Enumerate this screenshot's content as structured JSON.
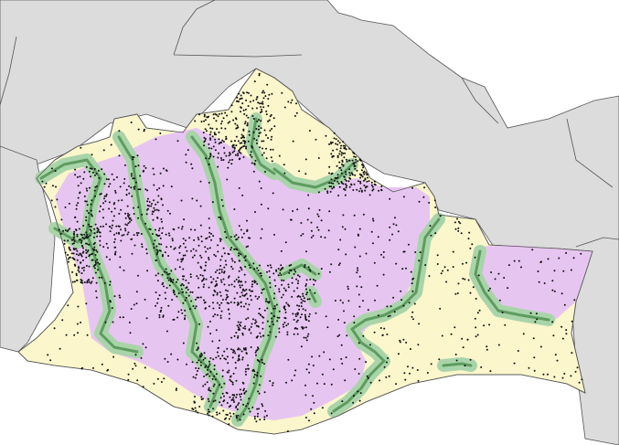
{
  "map": {
    "colors": {
      "sea": "#ffffff",
      "neighbor_land": "#dcdcdc",
      "border": "#555555",
      "lowland": "#fbf6cc",
      "highland": "#e7c5f1",
      "transition_outer": "#a9d4a9",
      "transition_inner": "#5d9c5f",
      "points": "#111111"
    },
    "layers": [
      "neighbor-land",
      "lowland-zone",
      "highland-zone",
      "transition-buffer",
      "point-observations"
    ]
  }
}
